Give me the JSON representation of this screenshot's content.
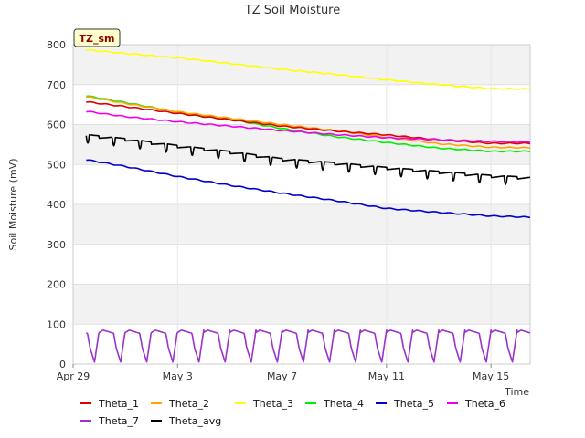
{
  "chart_data": {
    "type": "line",
    "title": "TZ Soil Moisture",
    "xlabel": "Time",
    "ylabel": "Soil Moisture (mV)",
    "badge": "TZ_sm",
    "xlim": [
      0,
      17.5
    ],
    "ylim": [
      0,
      800
    ],
    "yticks": [
      0,
      100,
      200,
      300,
      400,
      500,
      600,
      700,
      800
    ],
    "xticks": [
      {
        "day": 0,
        "label": "Apr 29"
      },
      {
        "day": 4,
        "label": "May 3"
      },
      {
        "day": 8,
        "label": "May 7"
      },
      {
        "day": 12,
        "label": "May 11"
      },
      {
        "day": 16,
        "label": "May 15"
      }
    ],
    "grid": true,
    "series": [
      {
        "name": "Theta_1",
        "color": "#dd0000",
        "pattern": "smooth",
        "x": [
          0.5,
          2,
          4,
          6,
          8,
          10,
          12,
          14,
          16,
          17.5
        ],
        "y": [
          657,
          645,
          628,
          612,
          596,
          584,
          574,
          562,
          553,
          553
        ]
      },
      {
        "name": "Theta_2",
        "color": "#ffa500",
        "pattern": "smooth",
        "x": [
          0.5,
          2,
          4,
          6,
          8,
          10,
          12,
          14,
          16,
          17.5
        ],
        "y": [
          670,
          653,
          632,
          616,
          600,
          585,
          568,
          552,
          543,
          542
        ]
      },
      {
        "name": "Theta_3",
        "color": "#ffff00",
        "pattern": "smooth",
        "x": [
          0.5,
          2,
          4,
          6,
          8,
          10,
          12,
          14,
          16,
          17.5
        ],
        "y": [
          787,
          778,
          767,
          753,
          738,
          726,
          712,
          700,
          690,
          689
        ]
      },
      {
        "name": "Theta_4",
        "color": "#00ee00",
        "pattern": "smooth",
        "x": [
          0.5,
          2,
          4,
          6,
          8,
          10,
          12,
          14,
          16,
          17.5
        ],
        "y": [
          672,
          655,
          632,
          613,
          590,
          570,
          555,
          541,
          533,
          533
        ]
      },
      {
        "name": "Theta_5",
        "color": "#0000cc",
        "pattern": "smooth",
        "x": [
          0.5,
          2,
          4,
          6,
          8,
          10,
          12,
          14,
          16,
          17.5
        ],
        "y": [
          512,
          495,
          470,
          448,
          428,
          410,
          390,
          380,
          371,
          368
        ]
      },
      {
        "name": "Theta_6",
        "color": "#ee00ee",
        "pattern": "smooth",
        "x": [
          0.5,
          2,
          4,
          6,
          8,
          10,
          12,
          14,
          16,
          17.5
        ],
        "y": [
          633,
          620,
          607,
          596,
          585,
          575,
          567,
          562,
          558,
          556
        ]
      },
      {
        "name": "Theta_7",
        "color": "#9933cc",
        "pattern": "daily-dip",
        "x": [
          0.5,
          17.5
        ],
        "y": [
          85,
          85
        ],
        "dip_low": 5
      },
      {
        "name": "Theta_avg",
        "color": "#000000",
        "pattern": "daily-step",
        "x": [
          0.5,
          2,
          4,
          6,
          8,
          10,
          12,
          14,
          16,
          17.5
        ],
        "y": [
          572,
          562,
          545,
          530,
          512,
          502,
          490,
          480,
          470,
          465
        ]
      }
    ]
  }
}
